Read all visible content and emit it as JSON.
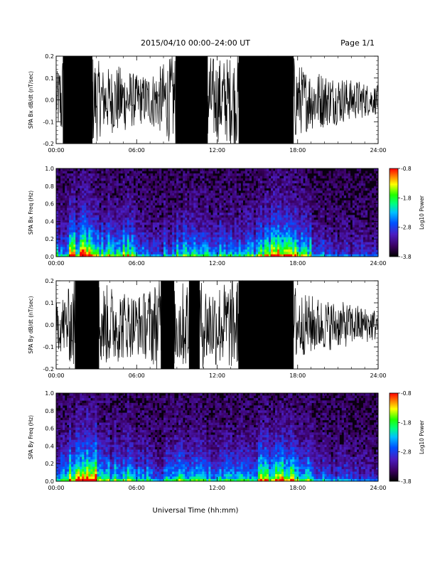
{
  "header": {
    "title": "2015/04/10  00:00–24:00 UT",
    "page": "Page 1/1"
  },
  "footer": {
    "xlabel": "Universal Time (hh:mm)"
  },
  "chart_data": [
    {
      "type": "line",
      "ylabel": "SPA Bx dB/dt (nT/sec)",
      "xlim": [
        0,
        24
      ],
      "ylim": [
        -0.2,
        0.2
      ],
      "x_ticks": [
        "00:00",
        "06:00",
        "12:00",
        "18:00",
        "24:00"
      ],
      "y_ticks": [
        "-0.2",
        "-0.1",
        "0.0",
        "0.1",
        "0.2"
      ],
      "series": [
        {
          "x": [
            0,
            0.5,
            1,
            1.5,
            2,
            2.5,
            3,
            3.5,
            4,
            4.5,
            5,
            5.5,
            6,
            6.5,
            7,
            7.5,
            8,
            8.5,
            9,
            9.5,
            10,
            10.5,
            11,
            11.5,
            12,
            12.5,
            13,
            13.5,
            14,
            14.5,
            15,
            15.5,
            16,
            16.5,
            17,
            17.5,
            18,
            18.5,
            19,
            19.5,
            20,
            20.5,
            21,
            21.5,
            22,
            22.5,
            23,
            23.5,
            24
          ],
          "envelope": [
            0.1,
            0.2,
            0.2,
            0.2,
            0.2,
            0.2,
            0.17,
            0.13,
            0.13,
            0.14,
            0.13,
            0.12,
            0.1,
            0.1,
            0.11,
            0.12,
            0.15,
            0.17,
            0.2,
            0.2,
            0.2,
            0.2,
            0.2,
            0.18,
            0.17,
            0.17,
            0.18,
            0.19,
            0.2,
            0.2,
            0.2,
            0.2,
            0.2,
            0.2,
            0.2,
            0.2,
            0.15,
            0.13,
            0.12,
            0.12,
            0.11,
            0.1,
            0.1,
            0.09,
            0.08,
            0.08,
            0.07,
            0.06,
            0.06
          ]
        }
      ]
    },
    {
      "type": "heatmap",
      "ylabel": "SPA Bx Freq (Hz)",
      "xlim": [
        0,
        24
      ],
      "ylim": [
        0.0,
        1.0
      ],
      "x_ticks": [
        "00:00",
        "06:00",
        "12:00",
        "18:00",
        "24:00"
      ],
      "y_ticks": [
        "0.0",
        "0.2",
        "0.4",
        "0.6",
        "0.8",
        "1.0"
      ],
      "colorbar": {
        "label": "Log10 Power",
        "range": [
          -3.8,
          -0.8
        ],
        "ticks": [
          "-0.8",
          "-1.8",
          "-2.8",
          "-3.8"
        ]
      },
      "activity_by_hour": [
        0.4,
        0.7,
        0.85,
        0.55,
        0.45,
        0.6,
        0.35,
        0.25,
        0.35,
        0.5,
        0.45,
        0.4,
        0.45,
        0.4,
        0.45,
        0.6,
        0.8,
        0.75,
        0.55,
        0.3,
        0.25,
        0.22,
        0.2,
        0.18
      ]
    },
    {
      "type": "line",
      "ylabel": "SPA By dB/dt (nT/sec)",
      "xlim": [
        0,
        24
      ],
      "ylim": [
        -0.2,
        0.2
      ],
      "x_ticks": [
        "00:00",
        "06:00",
        "12:00",
        "18:00",
        "24:00"
      ],
      "y_ticks": [
        "-0.2",
        "-0.1",
        "0.0",
        "0.1",
        "0.2"
      ],
      "series": [
        {
          "x": [
            0,
            0.5,
            1,
            1.5,
            2,
            2.5,
            3,
            3.5,
            4,
            4.5,
            5,
            5.5,
            6,
            6.5,
            7,
            7.5,
            8,
            8.5,
            9,
            9.5,
            10,
            10.5,
            11,
            11.5,
            12,
            12.5,
            13,
            13.5,
            14,
            14.5,
            15,
            15.5,
            16,
            16.5,
            17,
            17.5,
            18,
            18.5,
            19,
            19.5,
            20,
            20.5,
            21,
            21.5,
            22,
            22.5,
            23,
            23.5,
            24
          ],
          "envelope": [
            0.09,
            0.12,
            0.15,
            0.2,
            0.2,
            0.2,
            0.2,
            0.16,
            0.16,
            0.15,
            0.14,
            0.13,
            0.12,
            0.13,
            0.15,
            0.18,
            0.2,
            0.2,
            0.18,
            0.17,
            0.2,
            0.2,
            0.17,
            0.16,
            0.17,
            0.17,
            0.18,
            0.19,
            0.2,
            0.2,
            0.2,
            0.2,
            0.2,
            0.2,
            0.2,
            0.2,
            0.15,
            0.12,
            0.12,
            0.11,
            0.1,
            0.1,
            0.09,
            0.09,
            0.08,
            0.08,
            0.07,
            0.07,
            0.06
          ]
        }
      ]
    },
    {
      "type": "heatmap",
      "ylabel": "SPA By Freq (Hz)",
      "xlim": [
        0,
        24
      ],
      "ylim": [
        0.0,
        1.0
      ],
      "x_ticks": [
        "00:00",
        "06:00",
        "12:00",
        "18:00",
        "24:00"
      ],
      "y_ticks": [
        "0.0",
        "0.2",
        "0.4",
        "0.6",
        "0.8",
        "1.0"
      ],
      "colorbar": {
        "label": "Log10 Power",
        "range": [
          -3.8,
          -0.8
        ],
        "ticks": [
          "-0.8",
          "-1.8",
          "-2.8",
          "-3.8"
        ]
      },
      "activity_by_hour": [
        0.45,
        0.75,
        0.85,
        0.6,
        0.5,
        0.6,
        0.4,
        0.3,
        0.4,
        0.55,
        0.5,
        0.45,
        0.5,
        0.45,
        0.5,
        0.65,
        0.8,
        0.75,
        0.55,
        0.35,
        0.28,
        0.25,
        0.22,
        0.2
      ]
    }
  ]
}
